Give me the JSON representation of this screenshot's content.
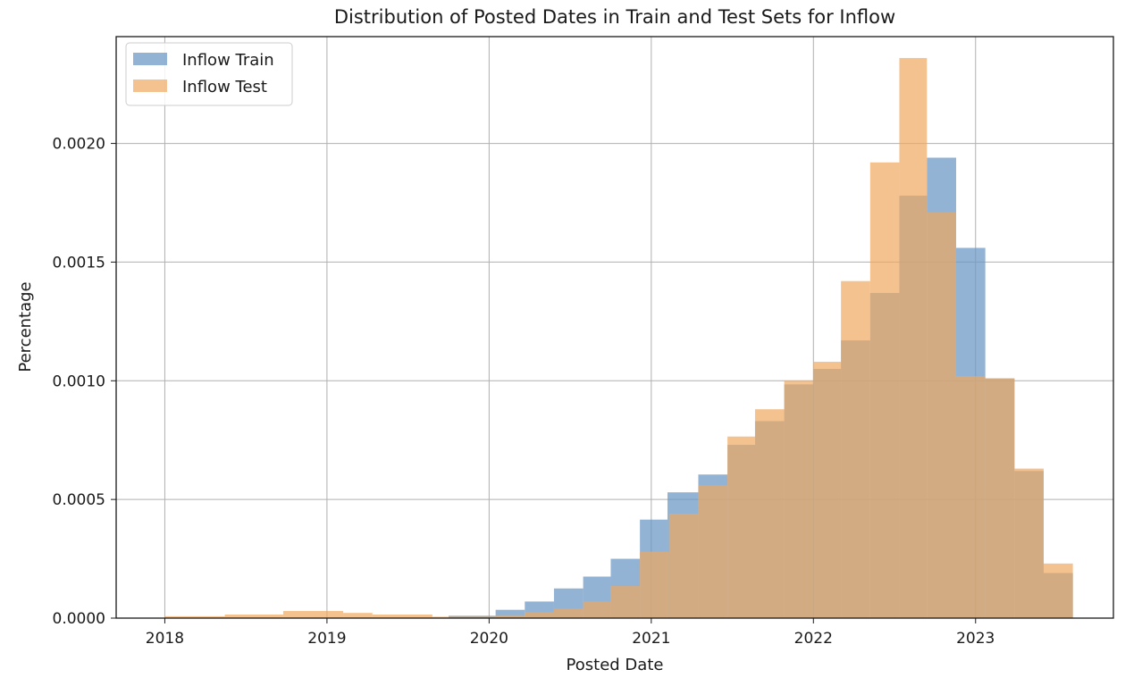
{
  "chart_data": {
    "type": "bar",
    "title": "Distribution of Posted Dates in Train and Test Sets for Inflow",
    "xlabel": "Posted Date",
    "ylabel": "Percentage",
    "xlim": [
      2017.7,
      2023.85
    ],
    "ylim": [
      0,
      0.00245
    ],
    "grid": true,
    "legend": {
      "placement": "top-left"
    },
    "x_ticks": [
      "2018",
      "2019",
      "2020",
      "2021",
      "2022",
      "2023"
    ],
    "y_ticks": [
      "0.0000",
      "0.0005",
      "0.0010",
      "0.0015",
      "0.0020"
    ],
    "series": [
      {
        "name": "Inflow Train",
        "color": "#6d9ac6",
        "opacity": 0.75,
        "bins": [
          {
            "x0": 2019.75,
            "x1": 2020.04,
            "y": 1e-05
          },
          {
            "x0": 2020.04,
            "x1": 2020.22,
            "y": 3.5e-05
          },
          {
            "x0": 2020.22,
            "x1": 2020.4,
            "y": 7e-05
          },
          {
            "x0": 2020.4,
            "x1": 2020.58,
            "y": 0.000125
          },
          {
            "x0": 2020.58,
            "x1": 2020.75,
            "y": 0.000175
          },
          {
            "x0": 2020.75,
            "x1": 2020.93,
            "y": 0.00025
          },
          {
            "x0": 2020.93,
            "x1": 2021.1,
            "y": 0.000415
          },
          {
            "x0": 2021.1,
            "x1": 2021.29,
            "y": 0.00053
          },
          {
            "x0": 2021.29,
            "x1": 2021.47,
            "y": 0.000605
          },
          {
            "x0": 2021.47,
            "x1": 2021.64,
            "y": 0.00073
          },
          {
            "x0": 2021.64,
            "x1": 2021.82,
            "y": 0.00083
          },
          {
            "x0": 2021.82,
            "x1": 2022.0,
            "y": 0.000985
          },
          {
            "x0": 2022.0,
            "x1": 2022.17,
            "y": 0.00105
          },
          {
            "x0": 2022.17,
            "x1": 2022.35,
            "y": 0.00117
          },
          {
            "x0": 2022.35,
            "x1": 2022.53,
            "y": 0.00137
          },
          {
            "x0": 2022.53,
            "x1": 2022.7,
            "y": 0.00178
          },
          {
            "x0": 2022.7,
            "x1": 2022.88,
            "y": 0.00194
          },
          {
            "x0": 2022.88,
            "x1": 2023.06,
            "y": 0.00156
          },
          {
            "x0": 2023.06,
            "x1": 2023.24,
            "y": 0.00101
          },
          {
            "x0": 2023.24,
            "x1": 2023.42,
            "y": 0.00062
          },
          {
            "x0": 2023.42,
            "x1": 2023.6,
            "y": 0.00019
          }
        ]
      },
      {
        "name": "Inflow Test",
        "color": "#f0a860",
        "opacity": 0.7,
        "bins": [
          {
            "x0": 2018.0,
            "x1": 2018.37,
            "y": 8e-06
          },
          {
            "x0": 2018.37,
            "x1": 2018.73,
            "y": 1.5e-05
          },
          {
            "x0": 2018.73,
            "x1": 2019.1,
            "y": 3e-05
          },
          {
            "x0": 2019.1,
            "x1": 2019.28,
            "y": 2.2e-05
          },
          {
            "x0": 2019.28,
            "x1": 2019.65,
            "y": 1.5e-05
          },
          {
            "x0": 2019.65,
            "x1": 2020.04,
            "y": 6e-06
          },
          {
            "x0": 2020.04,
            "x1": 2020.22,
            "y": 1.2e-05
          },
          {
            "x0": 2020.22,
            "x1": 2020.4,
            "y": 2.5e-05
          },
          {
            "x0": 2020.4,
            "x1": 2020.58,
            "y": 4e-05
          },
          {
            "x0": 2020.58,
            "x1": 2020.75,
            "y": 7e-05
          },
          {
            "x0": 2020.75,
            "x1": 2020.93,
            "y": 0.000135
          },
          {
            "x0": 2020.93,
            "x1": 2021.11,
            "y": 0.00028
          },
          {
            "x0": 2021.11,
            "x1": 2021.29,
            "y": 0.00044
          },
          {
            "x0": 2021.29,
            "x1": 2021.47,
            "y": 0.00056
          },
          {
            "x0": 2021.47,
            "x1": 2021.64,
            "y": 0.000765
          },
          {
            "x0": 2021.64,
            "x1": 2021.82,
            "y": 0.00088
          },
          {
            "x0": 2021.82,
            "x1": 2022.0,
            "y": 0.001
          },
          {
            "x0": 2022.0,
            "x1": 2022.17,
            "y": 0.00108
          },
          {
            "x0": 2022.17,
            "x1": 2022.35,
            "y": 0.00142
          },
          {
            "x0": 2022.35,
            "x1": 2022.53,
            "y": 0.00192
          },
          {
            "x0": 2022.53,
            "x1": 2022.7,
            "y": 0.00236
          },
          {
            "x0": 2022.7,
            "x1": 2022.88,
            "y": 0.00171
          },
          {
            "x0": 2022.88,
            "x1": 2023.06,
            "y": 0.00102
          },
          {
            "x0": 2023.06,
            "x1": 2023.24,
            "y": 0.00101
          },
          {
            "x0": 2023.24,
            "x1": 2023.42,
            "y": 0.00063
          },
          {
            "x0": 2023.42,
            "x1": 2023.6,
            "y": 0.00023
          }
        ]
      }
    ]
  }
}
